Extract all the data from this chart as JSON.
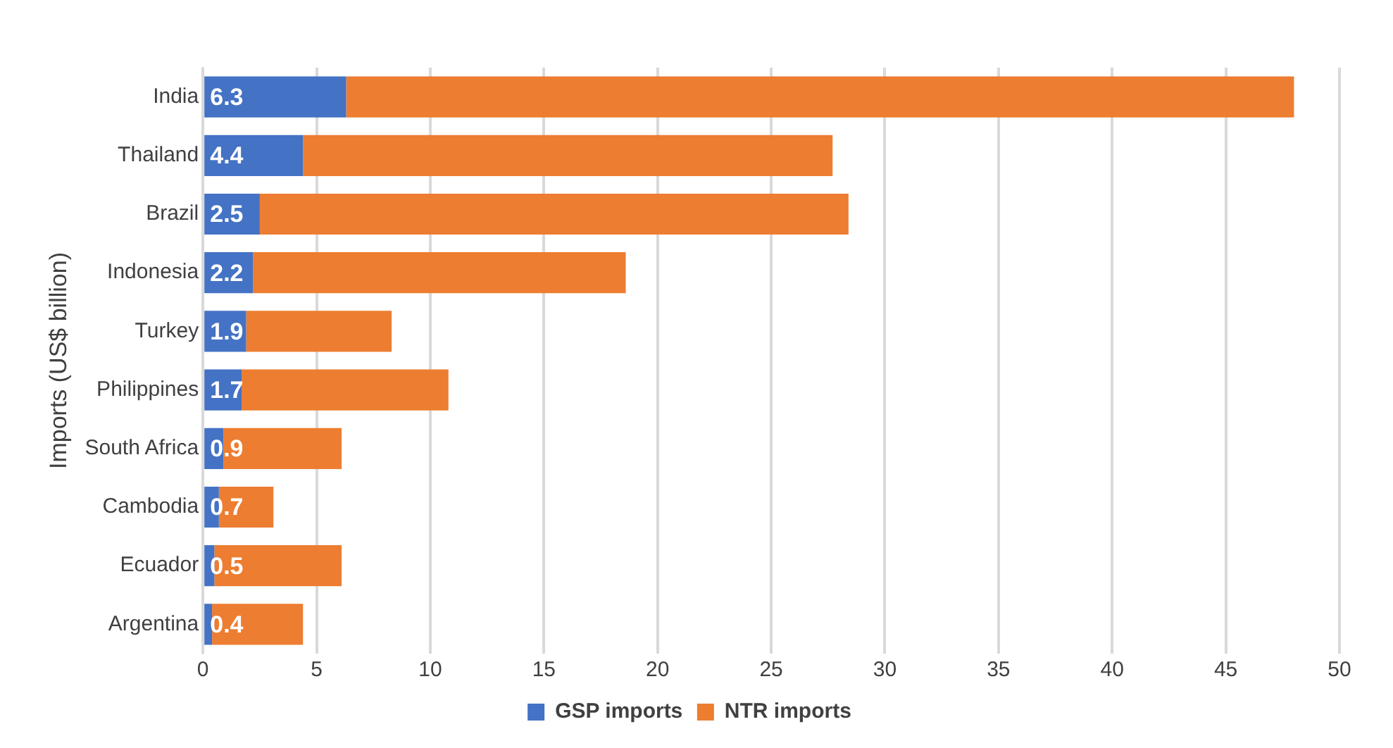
{
  "chart_data": {
    "type": "bar",
    "orientation": "horizontal",
    "stacked": true,
    "ylabel": "Imports (US$ billion)",
    "categories": [
      "India",
      "Thailand",
      "Brazil",
      "Indonesia",
      "Turkey",
      "Philippines",
      "South Africa",
      "Cambodia",
      "Ecuador",
      "Argentina"
    ],
    "series": [
      {
        "name": "GSP imports",
        "color": "#4472c4",
        "values": [
          6.3,
          4.4,
          2.5,
          2.2,
          1.9,
          1.7,
          0.9,
          0.7,
          0.5,
          0.4
        ],
        "value_labels": [
          "6.3",
          "4.4",
          "2.5",
          "2.2",
          "1.9",
          "1.7",
          "0.9",
          "0.7",
          "0.5",
          "0.4"
        ]
      },
      {
        "name": "NTR imports",
        "color": "#ed7d31",
        "values": [
          41.7,
          23.3,
          25.9,
          16.4,
          6.4,
          9.1,
          5.2,
          2.4,
          5.6,
          4.0
        ]
      }
    ],
    "xlim": [
      0,
      50
    ],
    "xticks": [
      0,
      5,
      10,
      15,
      20,
      25,
      30,
      35,
      40,
      45,
      50
    ],
    "grid": "x",
    "legend": "bottom"
  }
}
